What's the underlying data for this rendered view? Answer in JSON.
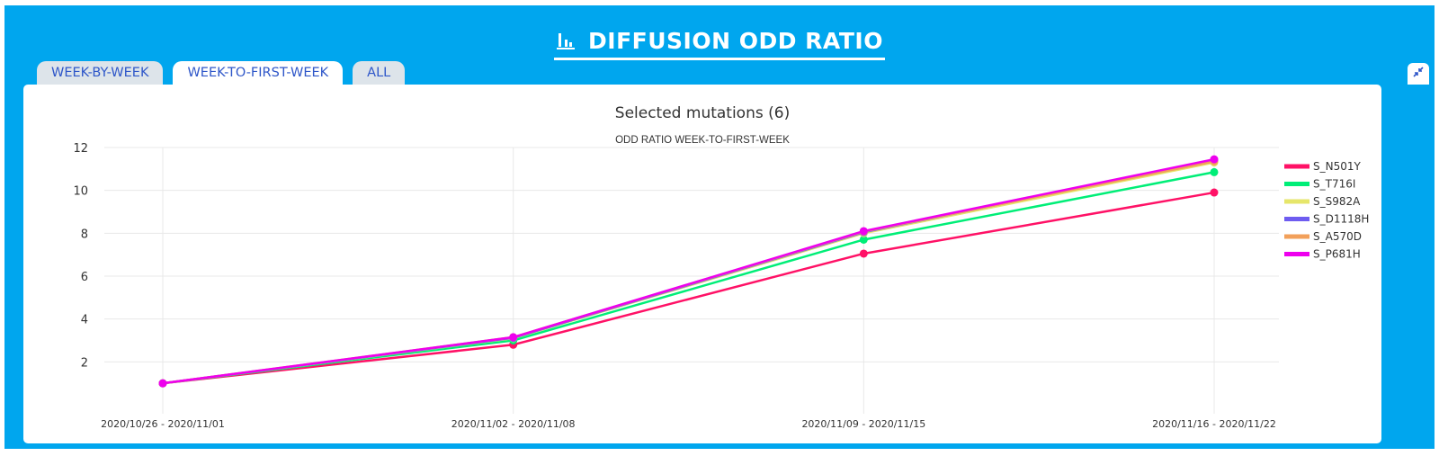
{
  "header": {
    "title": "DIFFUSION ODD RATIO",
    "icon": "bar-chart-icon"
  },
  "tabs": [
    {
      "label": "WEEK-BY-WEEK",
      "active": false
    },
    {
      "label": "WEEK-TO-FIRST-WEEK",
      "active": true
    },
    {
      "label": "ALL",
      "active": false
    }
  ],
  "collapse_icon": "collapse-icon",
  "colors": {
    "panel_background": "#00a6ee",
    "tab_text": "#2f57c9",
    "tab_inactive_background": "#dde4ea"
  },
  "chart_data": {
    "type": "line",
    "title": "Selected mutations (6)",
    "subtitle": "ODD RATIO WEEK-TO-FIRST-WEEK",
    "xlabel": "",
    "ylabel": "",
    "categories": [
      "2020/10/26 - 2020/11/01",
      "2020/11/02 - 2020/11/08",
      "2020/11/09 - 2020/11/15",
      "2020/11/16 - 2020/11/22"
    ],
    "y_ticks": [
      2,
      4,
      6,
      8,
      10,
      12
    ],
    "ylim": [
      0,
      12
    ],
    "grid": true,
    "legend_position": "right",
    "series": [
      {
        "name": "S_N501Y",
        "color": "#ff1166",
        "values": [
          1,
          2.8,
          7.05,
          9.9
        ]
      },
      {
        "name": "S_T716I",
        "color": "#00ee77",
        "values": [
          1,
          3.0,
          7.7,
          10.85
        ]
      },
      {
        "name": "S_S982A",
        "color": "#e6e66a",
        "values": [
          1,
          3.1,
          8.0,
          11.3
        ]
      },
      {
        "name": "S_D1118H",
        "color": "#6e5cf0",
        "values": [
          1,
          3.12,
          8.05,
          11.4
        ]
      },
      {
        "name": "S_A570D",
        "color": "#f2a05a",
        "values": [
          1,
          3.15,
          8.08,
          11.35
        ]
      },
      {
        "name": "S_P681H",
        "color": "#ee00ee",
        "values": [
          1,
          3.15,
          8.1,
          11.45
        ]
      }
    ]
  }
}
